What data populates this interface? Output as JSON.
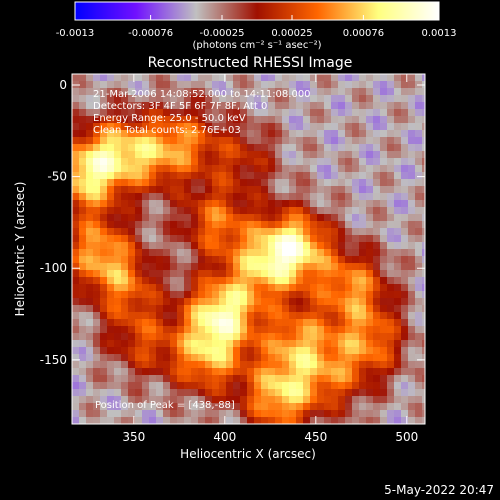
{
  "chart_data": {
    "type": "heatmap",
    "title": "Reconstructed RHESSI Image",
    "xlabel": "Heliocentric X (arcsec)",
    "ylabel": "Heliocentric Y (arcsec)",
    "xlim": [
      316,
      510
    ],
    "ylim": [
      -185,
      6
    ],
    "x_ticks": [
      350,
      400,
      450,
      500
    ],
    "y_ticks": [
      0,
      -50,
      -100,
      -150
    ],
    "colorbar": {
      "units": "(photons cm⁻² s⁻¹ asec⁻²)",
      "range": [
        -0.0013,
        0.0013
      ],
      "ticks": [
        "-0.0013",
        "-0.00076",
        "-0.00025",
        "0.00025",
        "0.00076",
        "0.0013"
      ],
      "ticks_at": [
        -0.0013,
        -0.00076,
        -0.00025,
        0.00025,
        0.00076,
        0.0013
      ],
      "colors": [
        "#0000ff",
        "#7010ff",
        "#c0c0c0",
        "#a01000",
        "#ff6600",
        "#ffff80",
        "#ffffff"
      ]
    },
    "annotations": [
      "21-Mar-2006 14:08:52.000 to 14:11:08.000",
      "Detectors: 3F 4F 5F 6F 7F 8F, Att 0",
      "Energy Range: 25.0 - 50.0 keV",
      "Clean     Total counts: 2.76E+03"
    ],
    "peak_label": "Position of Peak = [438,-88]",
    "sources": [
      {
        "x": 323,
        "y": -50,
        "v": 0.0011
      },
      {
        "x": 340,
        "y": -35,
        "v": 0.0008
      },
      {
        "x": 360,
        "y": -40,
        "v": 0.0006
      },
      {
        "x": 378,
        "y": -30,
        "v": 0.0007
      },
      {
        "x": 330,
        "y": -90,
        "v": 0.0009
      },
      {
        "x": 345,
        "y": -110,
        "v": 0.0007
      },
      {
        "x": 355,
        "y": -140,
        "v": 0.0006
      },
      {
        "x": 395,
        "y": -75,
        "v": 0.0008
      },
      {
        "x": 398,
        "y": -125,
        "v": 0.0013
      },
      {
        "x": 390,
        "y": -150,
        "v": 0.0009
      },
      {
        "x": 420,
        "y": -100,
        "v": 0.0008
      },
      {
        "x": 438,
        "y": -88,
        "v": 0.0013
      },
      {
        "x": 440,
        "y": -140,
        "v": 0.0009
      },
      {
        "x": 430,
        "y": -170,
        "v": 0.0011
      },
      {
        "x": 470,
        "y": -110,
        "v": 0.0009
      },
      {
        "x": 480,
        "y": -140,
        "v": 0.0008
      },
      {
        "x": 460,
        "y": -160,
        "v": 0.0006
      },
      {
        "x": 410,
        "y": -40,
        "v": 0.0005
      }
    ]
  },
  "footer_timestamp": "5-May-2022 20:47"
}
